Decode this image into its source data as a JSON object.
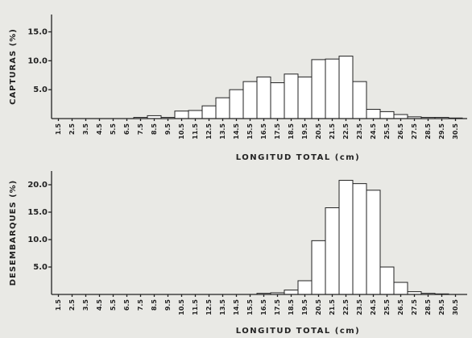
{
  "chart_data": [
    {
      "type": "bar",
      "ylabel": "CAPTURAS (%)",
      "xlabel": "LONGITUD TOTAL (cm)",
      "categories": [
        "1.5",
        "2.5",
        "3.5",
        "4.5",
        "5.5",
        "6.5",
        "7.5",
        "8.5",
        "9.5",
        "10.5",
        "11.5",
        "12.5",
        "13.5",
        "14.5",
        "15.5",
        "16.5",
        "17.5",
        "18.5",
        "19.5",
        "20.5",
        "21.5",
        "22.5",
        "23.5",
        "24.5",
        "25.5",
        "26.5",
        "27.5",
        "28.5",
        "29.5",
        "30.5"
      ],
      "values": [
        0,
        0,
        0,
        0,
        0,
        0,
        0.2,
        0.5,
        0.2,
        1.3,
        1.4,
        2.2,
        3.6,
        5.0,
        6.4,
        7.2,
        6.2,
        7.7,
        7.2,
        10.2,
        10.3,
        10.8,
        6.4,
        1.6,
        1.2,
        0.7,
        0.3,
        0.2,
        0.2,
        0.1
      ],
      "color": "#ffffff",
      "ylim": [
        0,
        18
      ],
      "yticks": [
        {
          "value": 5,
          "label": "5.0"
        },
        {
          "value": 10,
          "label": "10.0"
        },
        {
          "value": 15,
          "label": "15.0"
        }
      ]
    },
    {
      "type": "bar",
      "ylabel": "DESEMBARQUES (%)",
      "xlabel": "LONGITUD TOTAL (cm)",
      "categories": [
        "1.5",
        "2.5",
        "3.5",
        "4.5",
        "5.5",
        "6.5",
        "7.5",
        "8.5",
        "9.5",
        "10.5",
        "11.5",
        "12.5",
        "13.5",
        "14.5",
        "15.5",
        "16.5",
        "17.5",
        "18.5",
        "19.5",
        "20.5",
        "21.5",
        "22.5",
        "23.5",
        "24.5",
        "25.5",
        "26.5",
        "27.5",
        "28.5",
        "29.5",
        "30.5"
      ],
      "values": [
        0,
        0,
        0,
        0,
        0,
        0,
        0,
        0,
        0,
        0,
        0,
        0,
        0,
        0,
        0,
        0.2,
        0.3,
        0.8,
        2.5,
        9.8,
        15.8,
        20.8,
        20.2,
        19.0,
        5.0,
        2.2,
        0.5,
        0.2,
        0.1,
        0
      ],
      "color": "#ffffff",
      "ylim": [
        0,
        22.5
      ],
      "yticks": [
        {
          "value": 5,
          "label": "5.0"
        },
        {
          "value": 10,
          "label": "10.0"
        },
        {
          "value": 15,
          "label": "15.0"
        },
        {
          "value": 20,
          "label": "20.0"
        }
      ]
    }
  ]
}
